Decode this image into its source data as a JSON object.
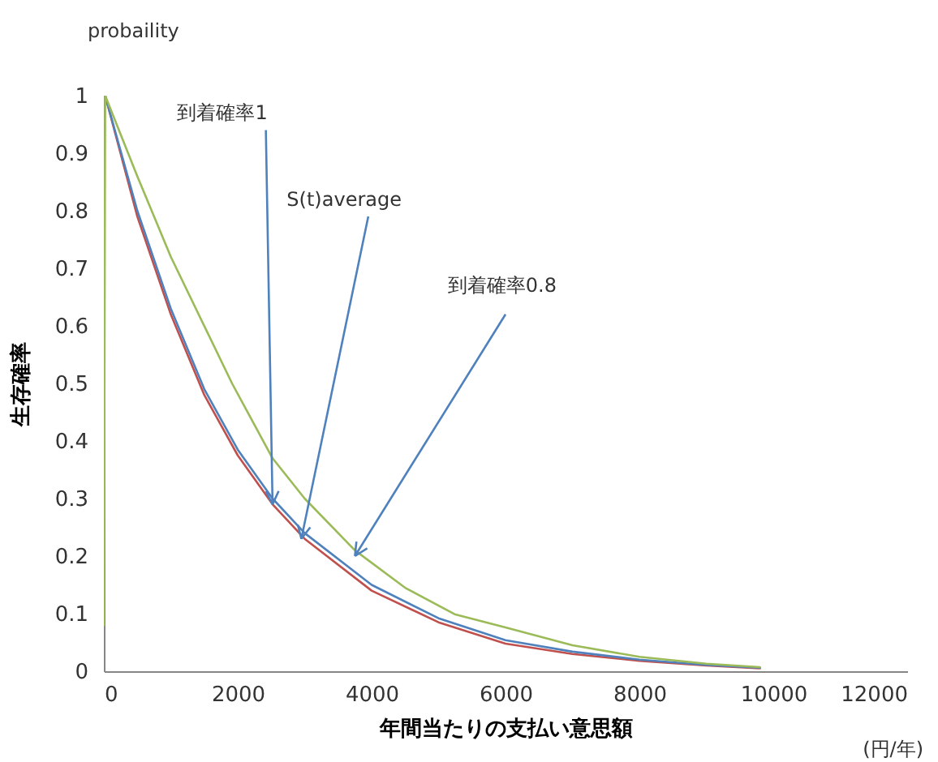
{
  "chart_data": {
    "type": "line",
    "xlabel": "年間当たりの支払い意思額",
    "ylabel": "生存確率",
    "x": [
      20,
      500,
      1000,
      1500,
      2000,
      2520,
      3000,
      4000,
      5000,
      6000,
      7000,
      8000,
      9000,
      9800
    ],
    "series": [
      {
        "color": "#c0504d",
        "values": [
          1,
          0.79,
          0.62,
          0.48,
          0.375,
          0.29,
          0.23,
          0.14,
          0.085,
          0.048,
          0.03,
          0.018,
          0.01,
          0.005
        ]
      },
      {
        "color": "#4f81bd",
        "values": [
          1,
          0.8,
          0.63,
          0.49,
          0.385,
          0.3,
          0.24,
          0.15,
          0.092,
          0.054,
          0.034,
          0.02,
          0.011,
          0.006
        ]
      },
      {
        "color": "#9bbb59",
        "x": [
          0,
          20,
          500,
          1000,
          1915,
          2520,
          3000,
          3750,
          4500,
          5240,
          6000,
          7000,
          8000,
          9000,
          9800
        ],
        "values": [
          0.08,
          1,
          0.86,
          0.72,
          0.5,
          0.37,
          0.3,
          0.21,
          0.145,
          0.099,
          0.076,
          0.045,
          0.025,
          0.013,
          0.007
        ]
      }
    ],
    "xlim": [
      0,
      12000
    ],
    "xticks": [
      0,
      2000,
      4000,
      6000,
      8000,
      10000,
      12000
    ],
    "ylim": [
      0,
      1
    ],
    "yticks": [
      0,
      0.1,
      0.2,
      0.3,
      0.4,
      0.5,
      0.6,
      0.7,
      0.8,
      0.9,
      1
    ],
    "grid": false,
    "legend": false,
    "annotations": [
      "probaility",
      "(円/年)",
      {
        "text": "到着確率1",
        "x": 2520,
        "y": 0.29
      },
      {
        "text": "S(t)average",
        "x": 2950,
        "y": 0.23
      },
      {
        "text": "到着確率0.8",
        "x": 3750,
        "y": 0.2
      }
    ]
  }
}
